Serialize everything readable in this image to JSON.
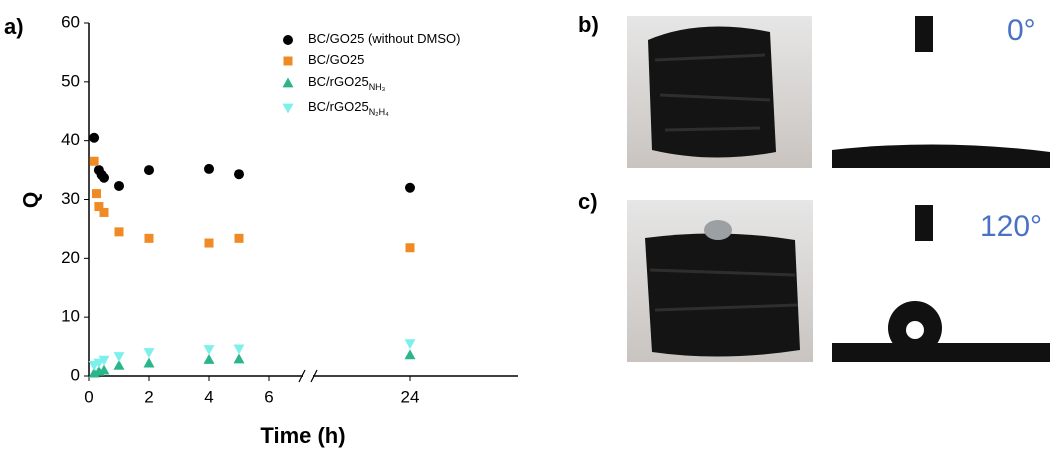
{
  "chart_data": {
    "type": "scatter",
    "panel_label": "a)",
    "x_label": "Time (h)",
    "y_label": "Q",
    "xlim": [
      0,
      27.6
    ],
    "xbreak": [
      7.3,
      20.6
    ],
    "xticks": [
      0,
      2,
      4,
      6,
      24
    ],
    "ylim": [
      0,
      60
    ],
    "yticks": [
      0,
      10,
      20,
      30,
      40,
      50,
      60
    ],
    "grid": false,
    "legend": "upper right",
    "series": [
      {
        "name": "BC/GO25 (without DMSO)",
        "color": "#000000",
        "marker": "circle",
        "x": [
          0.17,
          0.33,
          0.42,
          0.5,
          1,
          2,
          4,
          5,
          24
        ],
        "values": [
          40.5,
          35,
          34.2,
          33.7,
          32.3,
          35,
          35.2,
          34.3,
          32
        ]
      },
      {
        "name": "BC/GO25",
        "color": "#f08a24",
        "marker": "square",
        "x": [
          0.17,
          0.25,
          0.33,
          0.5,
          1,
          2,
          4,
          5,
          24
        ],
        "values": [
          36.5,
          31,
          28.8,
          27.8,
          24.5,
          23.4,
          22.6,
          23.4,
          21.8
        ]
      },
      {
        "name": "BC/rGO25",
        "name_subscript": "NH₃",
        "color": "#2bb58a",
        "marker": "triangle",
        "x": [
          0.17,
          0.33,
          0.5,
          1,
          2,
          4,
          5,
          24
        ],
        "values": [
          0.5,
          0.8,
          1,
          1.8,
          2.2,
          2.8,
          2.9,
          3.6
        ]
      },
      {
        "name": "BC/rGO25",
        "name_subscript": "N₂H₄",
        "color": "#7ef0ec",
        "marker": "triangle-down",
        "x": [
          0.17,
          0.33,
          0.5,
          1,
          2,
          4,
          5,
          24
        ],
        "values": [
          1.8,
          2.2,
          2.7,
          3.3,
          4,
          4.5,
          4.6,
          5.5
        ]
      }
    ]
  },
  "photos": {
    "b": {
      "label": "b)",
      "angle": "0°"
    },
    "c": {
      "label": "c)",
      "angle": "120°"
    }
  }
}
